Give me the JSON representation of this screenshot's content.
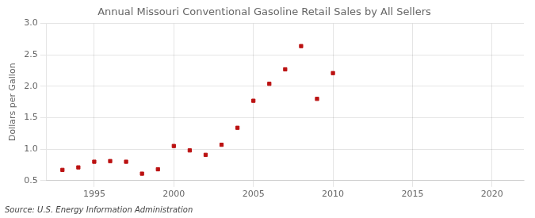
{
  "chart_data": {
    "type": "scatter",
    "title": "Annual Missouri Conventional Gasoline Retail Sales by All Sellers",
    "y_label": "Dollars per Gallon",
    "source": "Source: U.S. Energy Information Administration",
    "x": [
      1993,
      1994,
      1995,
      1996,
      1997,
      1998,
      1999,
      2000,
      2001,
      2002,
      2003,
      2004,
      2005,
      2006,
      2007,
      2008,
      2009,
      2010
    ],
    "values": [
      0.67,
      0.71,
      0.8,
      0.81,
      0.8,
      0.61,
      0.68,
      1.05,
      0.98,
      0.91,
      1.07,
      1.34,
      1.77,
      2.04,
      2.27,
      2.64,
      1.8,
      2.21
    ],
    "color": "#bb1111",
    "marker": "square",
    "xlim": [
      1992,
      2022
    ],
    "xticks": [
      1995,
      2000,
      2005,
      2010,
      2015,
      2020
    ],
    "ylim": [
      0.5,
      3.0
    ],
    "yticks": [
      0.5,
      {
        "value": 1.0,
        "label": "1.0"
      },
      1.5,
      {
        "value": 2.0,
        "label": "2.0"
      },
      2.5,
      {
        "value": 3.0,
        "label": "3.0"
      }
    ],
    "grid": true
  }
}
